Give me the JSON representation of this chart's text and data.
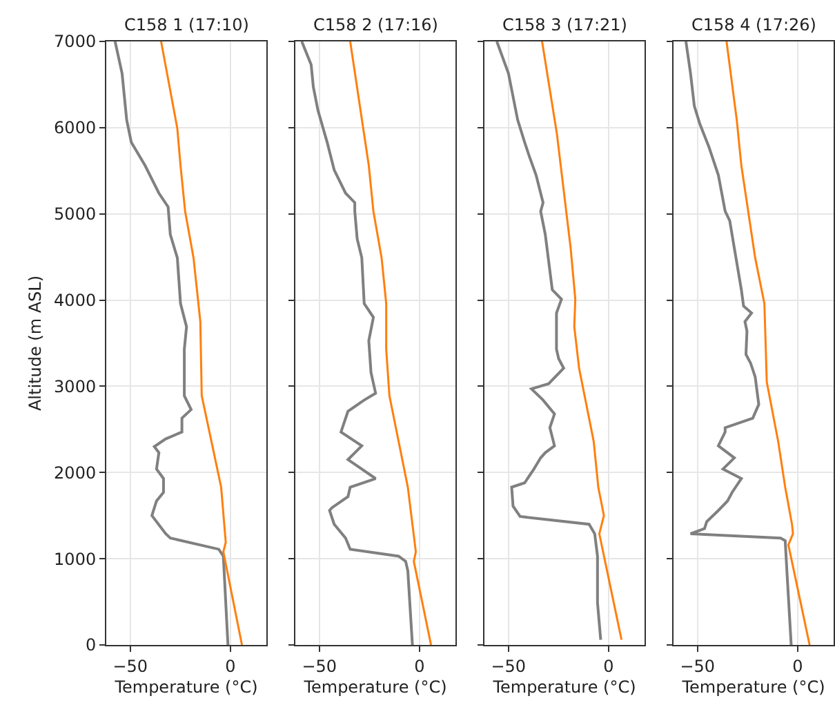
{
  "chart_data": [
    {
      "type": "line",
      "title": "C158 1 (17:10)",
      "xlabel": "Temperature (°C)",
      "ylabel": "Altitude (m ASL)",
      "xlim": [
        -62,
        18
      ],
      "xticks": [
        -50,
        0
      ],
      "ylim": [
        0,
        7000
      ],
      "yticks": [
        0,
        1000,
        2000,
        3000,
        4000,
        5000,
        6000,
        7000
      ],
      "grid": true,
      "line_style": "solid",
      "series": [
        {
          "color": "#808080",
          "x": [
            -1.2,
            -3.5,
            -5.8,
            -30,
            -32.3,
            -39.2,
            -36.9,
            -33.4,
            -33.4,
            -36.9,
            -35.7,
            -38,
            -32.3,
            -24.2,
            -24.2,
            -19.6,
            -23,
            -23,
            -21.9,
            -24.9,
            -26.5,
            -30,
            -31.1,
            -35.7,
            -42.6,
            -49.5,
            -51.8,
            -54.1,
            -57.6
          ],
          "values": [
            0,
            1030,
            1110,
            1240,
            1290,
            1500,
            1670,
            1770,
            1930,
            2040,
            2230,
            2300,
            2390,
            2470,
            2630,
            2730,
            2890,
            3430,
            3690,
            3960,
            4490,
            4760,
            5080,
            5240,
            5560,
            5830,
            6090,
            6630,
            7000
          ]
        },
        {
          "color": "#ff7f0e",
          "x": [
            5.8,
            -3.5,
            -2.3,
            -4.6,
            -14.3,
            -15,
            -18.4,
            -22.6,
            -24.9,
            -26.5,
            -34.6
          ],
          "values": [
            0,
            1080,
            1190,
            1830,
            2890,
            3750,
            4490,
            5030,
            5560,
            5990,
            7000
          ]
        }
      ]
    },
    {
      "type": "line",
      "title": "C158 2 (17:16)",
      "xlabel": "Temperature (°C)",
      "xlim": [
        -62,
        18
      ],
      "xticks": [
        -50,
        0
      ],
      "ylim": [
        0,
        7000
      ],
      "yticks": [
        0,
        1000,
        2000,
        3000,
        4000,
        5000,
        6000,
        7000
      ],
      "grid": true,
      "tick_labels": "x",
      "line_style": "solid",
      "series": [
        {
          "color": "#808080",
          "x": [
            -3.5,
            -5.8,
            -6.9,
            -10.4,
            -34.6,
            -36.9,
            -42.6,
            -44.9,
            -43.8,
            -35.7,
            -34.6,
            -21.9,
            -35.7,
            -28.8,
            -39.2,
            -35.7,
            -27.6,
            -21.9,
            -24.2,
            -25.3,
            -23,
            -27.6,
            -28.8,
            -31.1,
            -32.3,
            -32.3,
            -36.9,
            -42.6,
            -46.1,
            -50.7,
            -53,
            -54.1,
            -58.8
          ],
          "values": [
            0,
            860,
            970,
            1030,
            1110,
            1240,
            1400,
            1560,
            1590,
            1720,
            1830,
            1930,
            2150,
            2310,
            2470,
            2710,
            2840,
            2920,
            3160,
            3530,
            3800,
            3960,
            4490,
            4710,
            5030,
            5130,
            5240,
            5510,
            5830,
            6200,
            6470,
            6730,
            7000
          ]
        },
        {
          "color": "#ff7f0e",
          "x": [
            5.8,
            -2.8,
            -1.8,
            -5.8,
            -15,
            -16.6,
            -16.6,
            -18.9,
            -23,
            -25.3,
            -34.6
          ],
          "values": [
            0,
            970,
            1080,
            1830,
            2890,
            3430,
            3960,
            4490,
            5030,
            5560,
            7000
          ]
        }
      ]
    },
    {
      "type": "line",
      "title": "C158 3 (17:21)",
      "xlabel": "Temperature (°C)",
      "xlim": [
        -62,
        18
      ],
      "xticks": [
        -50,
        0
      ],
      "ylim": [
        0,
        7000
      ],
      "yticks": [
        0,
        1000,
        2000,
        3000,
        4000,
        5000,
        6000,
        7000
      ],
      "grid": true,
      "tick_labels": "x",
      "line_style": "solid",
      "series": [
        {
          "color": "#808080",
          "x": [
            -3.9,
            -5.5,
            -5.5,
            -6.9,
            -9.7,
            -44.2,
            -47.7,
            -48.4,
            -41.9,
            -37.3,
            -33.9,
            -31.6,
            -27,
            -29.3,
            -27,
            -32.7,
            -38.5,
            -29.9,
            -22.4,
            -24.9,
            -26,
            -26,
            -23.5,
            -28.1,
            -31.6,
            -33.9,
            -32.7,
            -36.2,
            -39.6,
            -41.9,
            -45.4,
            -50,
            -55.8
          ],
          "values": [
            60,
            490,
            1030,
            1290,
            1400,
            1490,
            1610,
            1830,
            1880,
            2040,
            2170,
            2230,
            2310,
            2520,
            2680,
            2840,
            2970,
            3030,
            3210,
            3320,
            3430,
            3850,
            4010,
            4120,
            4760,
            5030,
            5130,
            5450,
            5670,
            5830,
            6090,
            6630,
            7000
          ]
        },
        {
          "color": "#ff7f0e",
          "x": [
            6.5,
            -4.6,
            -2.3,
            -5.1,
            -7.4,
            -14.7,
            -17.1,
            -16.6,
            -18.9,
            -25.8,
            -33.2
          ],
          "values": [
            60,
            1290,
            1500,
            1830,
            2360,
            3210,
            3690,
            4010,
            4600,
            5930,
            7000
          ]
        }
      ]
    },
    {
      "type": "line",
      "title": "C158 4 (17:26)",
      "xlabel": "Temperature (°C)",
      "xlim": [
        -62,
        18
      ],
      "xticks": [
        -50,
        0
      ],
      "ylim": [
        0,
        7000
      ],
      "yticks": [
        0,
        1000,
        2000,
        3000,
        4000,
        5000,
        6000,
        7000
      ],
      "grid": true,
      "tick_labels": "x",
      "line_style": "solid",
      "series": [
        {
          "color": "#808080",
          "x": [
            -3.2,
            -5.1,
            -6.2,
            -8.5,
            -53.5,
            -46.5,
            -45.4,
            -39.6,
            -35,
            -32.7,
            -28.1,
            -37.3,
            -31.6,
            -39.6,
            -36.2,
            -36.2,
            -22.4,
            -19.4,
            -21.2,
            -23.5,
            -25.8,
            -25.3,
            -26.3,
            -23,
            -27,
            -28.1,
            -31.6,
            -33.9,
            -36.2,
            -39.6,
            -44.2,
            -48.8,
            -51.6,
            -53.5,
            -55.8
          ],
          "values": [
            0,
            760,
            1210,
            1240,
            1290,
            1350,
            1430,
            1560,
            1670,
            1770,
            1930,
            2040,
            2170,
            2310,
            2470,
            2520,
            2630,
            2790,
            3110,
            3270,
            3370,
            3640,
            3750,
            3850,
            3930,
            4120,
            4600,
            4920,
            5030,
            5450,
            5770,
            6040,
            6250,
            6630,
            7000
          ]
        },
        {
          "color": "#ff7f0e",
          "x": [
            6,
            -4.6,
            -2.3,
            -2.8,
            -6.2,
            -9.7,
            -15.4,
            -16.1,
            -16.6,
            -21.2,
            -28.1,
            -30.4,
            -35.5
          ],
          "values": [
            0,
            1160,
            1290,
            1400,
            1830,
            2360,
            3050,
            3590,
            3960,
            4490,
            5560,
            6090,
            7000
          ]
        }
      ]
    }
  ]
}
